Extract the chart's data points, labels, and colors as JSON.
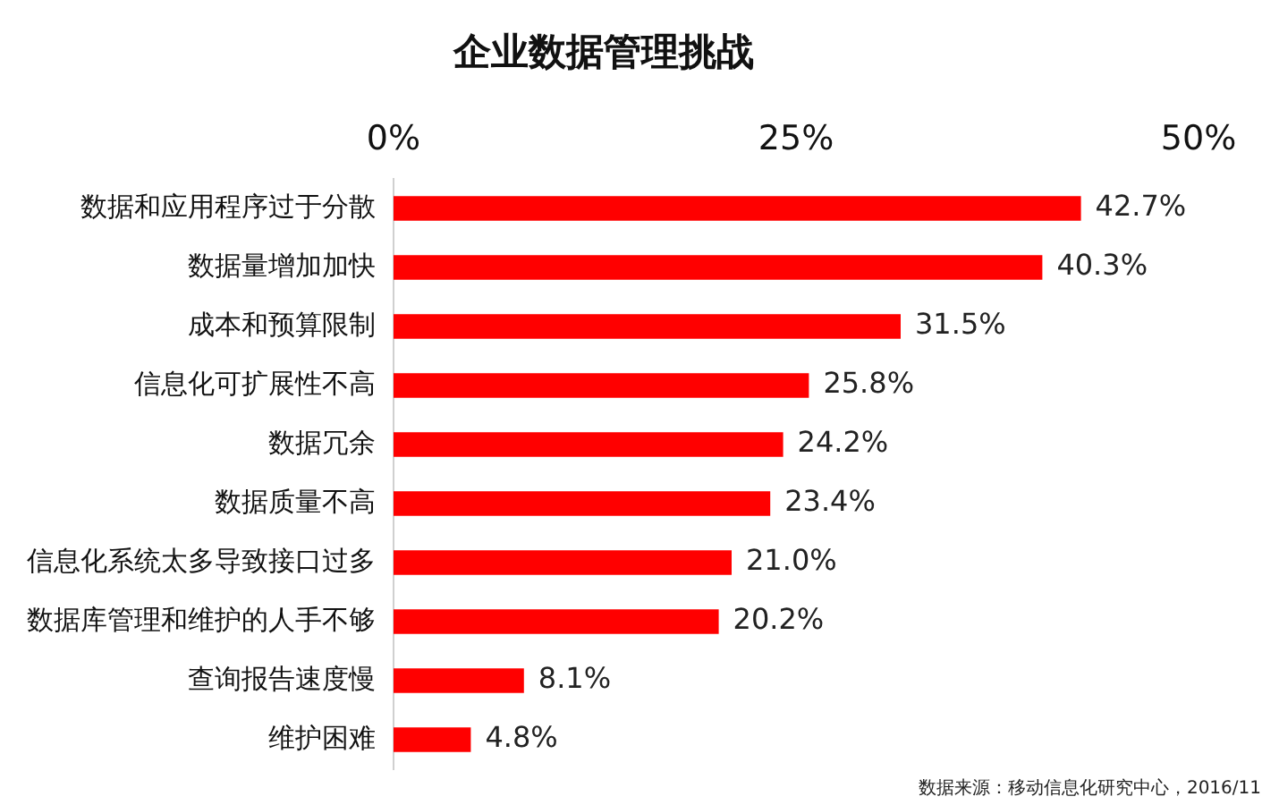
{
  "chart_data": {
    "type": "bar",
    "orientation": "horizontal",
    "title": "企业数据管理挑战",
    "categories": [
      "数据和应用程序过于分散",
      "数据量增加加快",
      "成本和预算限制",
      "信息化可扩展性不高",
      "数据冗余",
      "数据质量不高",
      "信息化系统太多导致接口过多",
      "数据库管理和维护的人手不够",
      "查询报告速度慢",
      "维护困难"
    ],
    "values": [
      42.7,
      40.3,
      31.5,
      25.8,
      24.2,
      23.4,
      21.0,
      20.2,
      8.1,
      4.8
    ],
    "value_labels": [
      "42.7%",
      "40.3%",
      "31.5%",
      "25.8%",
      "24.2%",
      "23.4%",
      "21.0%",
      "20.2%",
      "8.1%",
      "4.8%"
    ],
    "color": "#ff0000",
    "xlim": [
      0,
      50
    ],
    "xticks": [
      {
        "value": 0,
        "label": "0%"
      },
      {
        "value": 25,
        "label": "25%"
      },
      {
        "value": 50,
        "label": "50%"
      }
    ],
    "grid": false,
    "legend": false,
    "annotations": [
      "数据来源：移动信息化研究中心，2016/11"
    ]
  }
}
